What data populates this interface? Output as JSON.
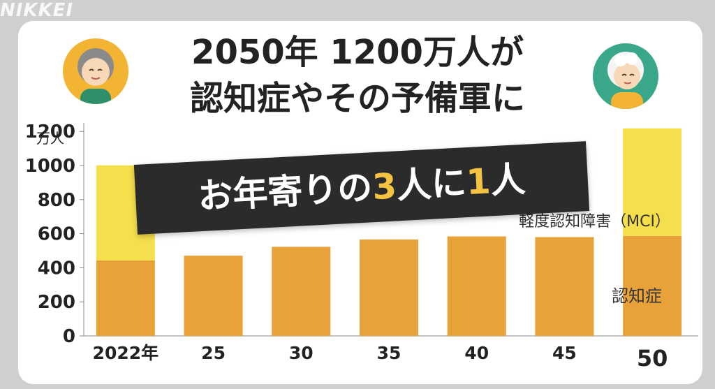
{
  "brand": "NIKKEI",
  "title": {
    "line1": "2050年 1200万人が",
    "line2": "認知症やその予備軍に"
  },
  "banner": {
    "part1": "お年寄りの",
    "num1": "3",
    "part2": "人に",
    "num2": "1",
    "part3": "人"
  },
  "colors": {
    "dementia": "#e8a23a",
    "mci": "#f5df4d",
    "banner_bg": "#2b2b2b",
    "accent": "#f5c342"
  },
  "chart_data": {
    "type": "bar",
    "stacked": true,
    "categories": [
      "2022年",
      "25",
      "30",
      "35",
      "40",
      "45",
      "50"
    ],
    "highlight_category": "50",
    "ylabel": "万人",
    "ylim": [
      0,
      1250
    ],
    "yticks": [
      "0",
      "200",
      "400",
      "600",
      "800",
      "1000",
      "1200"
    ],
    "series": [
      {
        "name": "認知症",
        "values": [
          443,
          471,
          523,
          566,
          584,
          580,
          587
        ]
      },
      {
        "name": "軽度認知障害（MCI）",
        "values": [
          558,
          0,
          0,
          0,
          0,
          0,
          631
        ]
      }
    ]
  }
}
